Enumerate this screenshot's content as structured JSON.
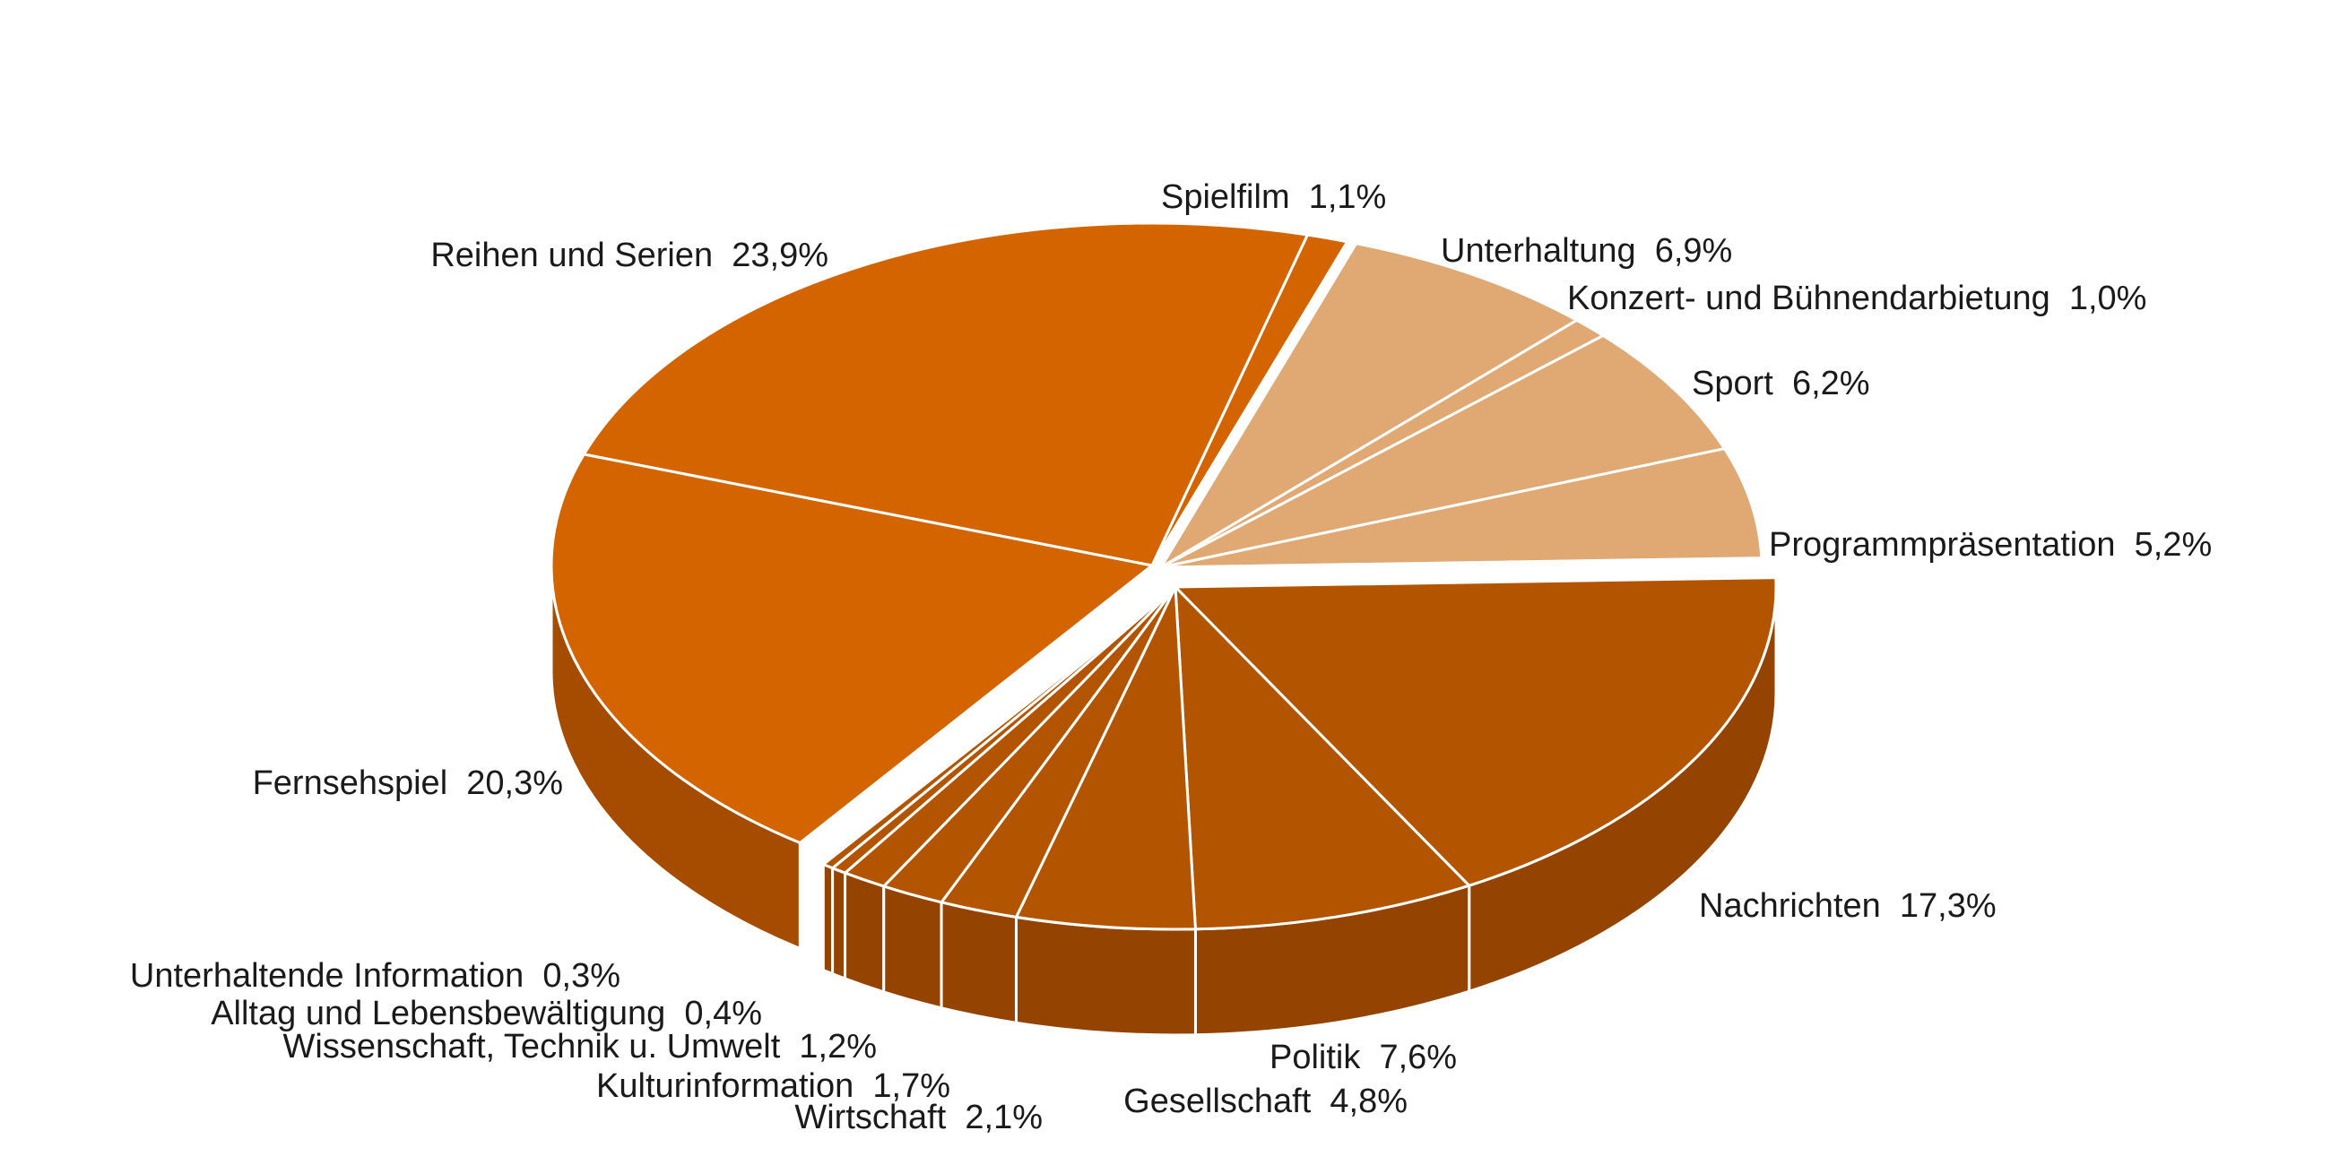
{
  "chart_data": {
    "type": "pie",
    "style": "3d-exploded",
    "title": "",
    "slices": [
      {
        "label": "Spielfilm",
        "value": 1.1,
        "display": "1,1%",
        "group": "fiction"
      },
      {
        "label": "Unterhaltung",
        "value": 6.9,
        "display": "6,9%",
        "group": "entertainment"
      },
      {
        "label": "Konzert- und Bühnendarbietung",
        "value": 1.0,
        "display": "1,0%",
        "group": "entertainment"
      },
      {
        "label": "Sport",
        "value": 6.2,
        "display": "6,2%",
        "group": "entertainment"
      },
      {
        "label": "Programmpräsentation",
        "value": 5.2,
        "display": "5,2%",
        "group": "entertainment"
      },
      {
        "label": "Nachrichten",
        "value": 17.3,
        "display": "17,3%",
        "group": "information"
      },
      {
        "label": "Politik",
        "value": 7.6,
        "display": "7,6%",
        "group": "information"
      },
      {
        "label": "Gesellschaft",
        "value": 4.8,
        "display": "4,8%",
        "group": "information"
      },
      {
        "label": "Wirtschaft",
        "value": 2.1,
        "display": "2,1%",
        "group": "information"
      },
      {
        "label": "Kulturinformation",
        "value": 1.7,
        "display": "1,7%",
        "group": "information"
      },
      {
        "label": "Wissenschaft, Technik u. Umwelt",
        "value": 1.2,
        "display": "1,2%",
        "group": "information"
      },
      {
        "label": "Alltag und Lebensbewältigung",
        "value": 0.4,
        "display": "0,4%",
        "group": "information"
      },
      {
        "label": "Unterhaltende Information",
        "value": 0.3,
        "display": "0,3%",
        "group": "information"
      },
      {
        "label": "Fernsehspiel",
        "value": 20.3,
        "display": "20,3%",
        "group": "fiction"
      },
      {
        "label": "Reihen und Serien",
        "value": 23.9,
        "display": "23,9%",
        "group": "fiction"
      }
    ],
    "group_colors": {
      "fiction": {
        "top": "#d46400",
        "side": "#a64c00"
      },
      "entertainment": {
        "top": "#e0a873",
        "side": "#b8865a"
      },
      "information": {
        "top": "#b35500",
        "side": "#944400"
      }
    },
    "separator_color": "#ffffff",
    "legend": "none"
  }
}
